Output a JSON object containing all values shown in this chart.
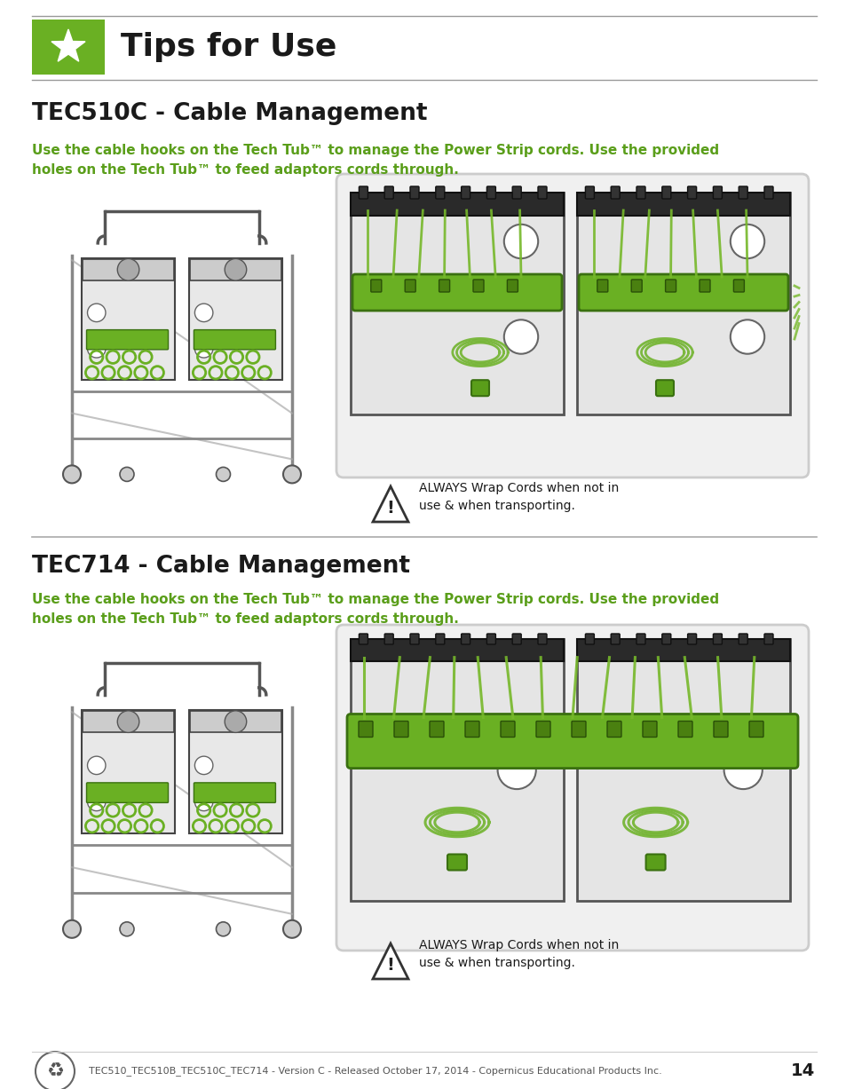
{
  "page_bg": "#ffffff",
  "green_color": "#6ab023",
  "header_title": "Tips for Use",
  "header_title_fontsize": 26,
  "section1_title": "TEC510C - Cable Management",
  "section1_title_fontsize": 19,
  "section2_title": "TEC714 - Cable Management",
  "section2_title_fontsize": 19,
  "body_text": "Use the cable hooks on the Tech Tub™ to manage the Power Strip cords. Use the provided\nholes on the Tech Tub™ to feed adaptors cords through.",
  "body_fontsize": 11,
  "body_color": "#5a9e1a",
  "warning_text": "ALWAYS Wrap Cords when not in\nuse & when transporting.",
  "warning_fontsize": 10,
  "footer_text": "TEC510_TEC510B_TEC510C_TEC714 - Version C - Released October 17, 2014 - Copernicus Educational Products Inc.",
  "footer_page": "14",
  "footer_fontsize": 8
}
